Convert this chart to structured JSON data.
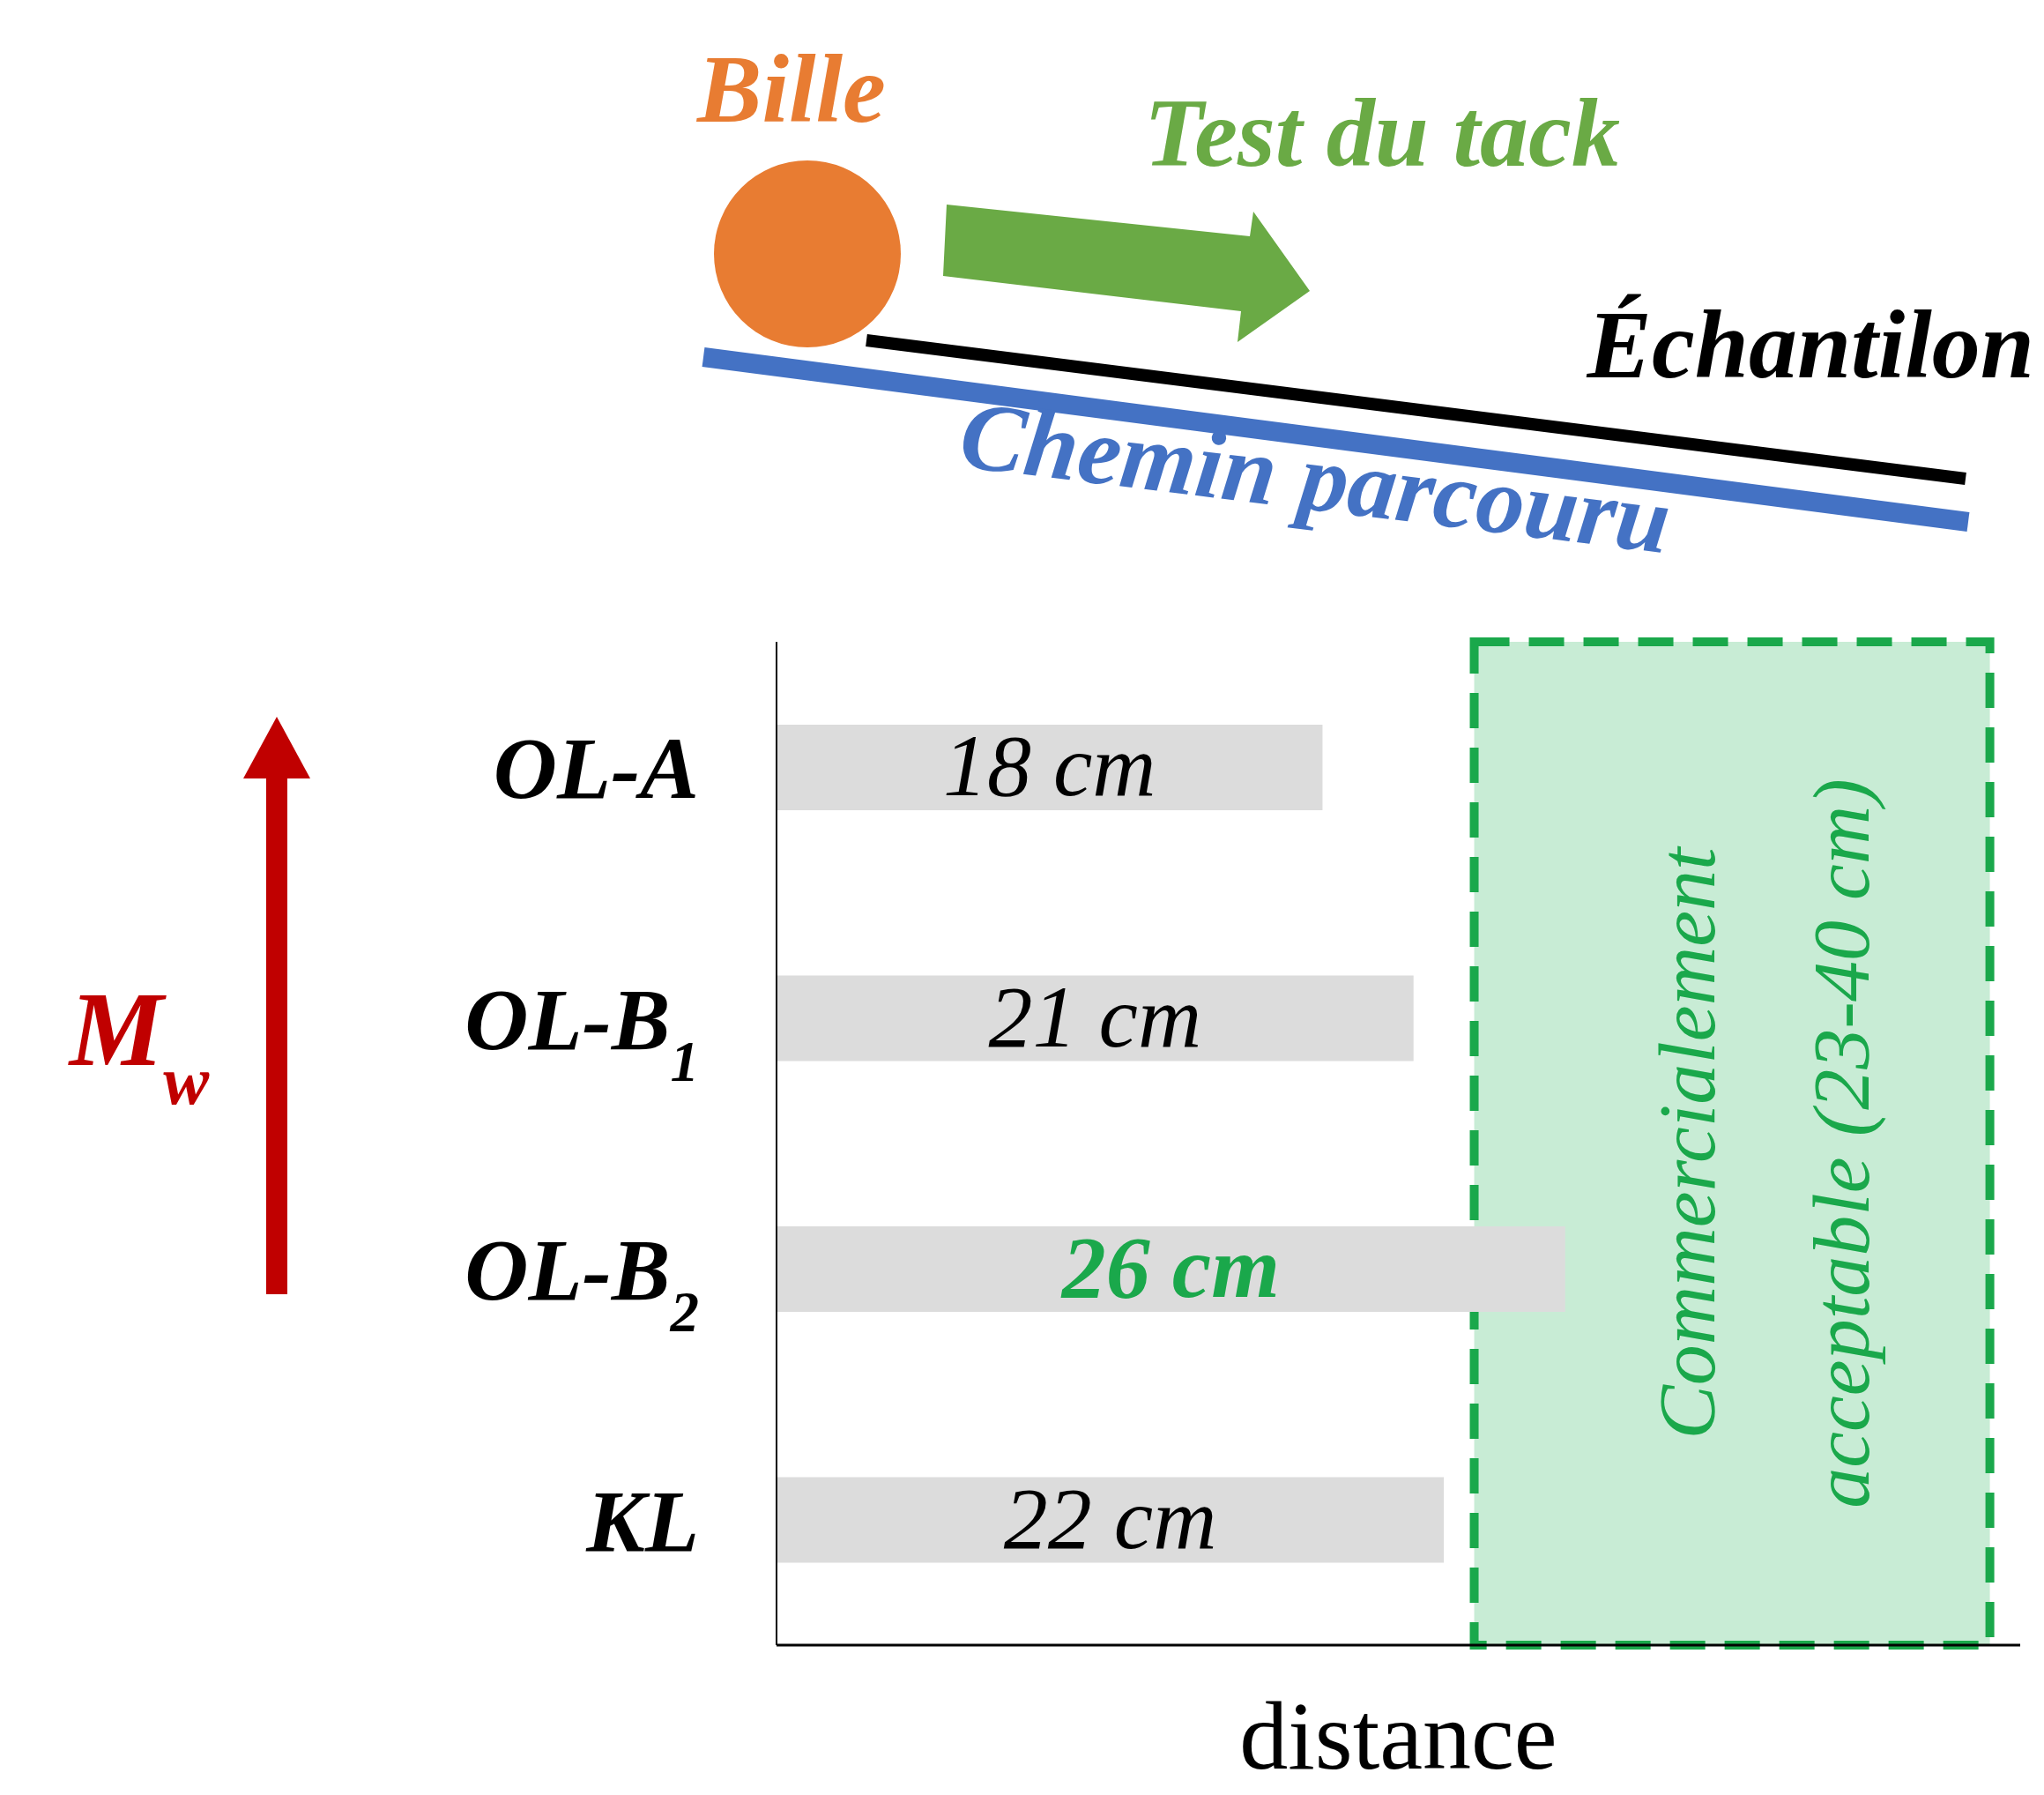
{
  "chart_data": {
    "type": "bar",
    "orientation": "horizontal",
    "categories": [
      "OL-A",
      "OL-B$_{1}$",
      "OL-B$_{2}$",
      "KL"
    ],
    "values": [
      18,
      21,
      26,
      22
    ],
    "value_labels": [
      "18 cm",
      "21 cm",
      "26 cm",
      "22 cm"
    ],
    "color": "#dcdcdc",
    "xlim": [
      0,
      41
    ],
    "xlabel": "distance",
    "ylabel": "M$_{w}$",
    "bands": [
      {
        "axis": "x",
        "from": 23,
        "to": 40,
        "label": "Commercialement acceptable (23-40 cm)",
        "color": "#c8ecd5"
      }
    ],
    "annotations": [
      "Bille",
      "Test du tack",
      "Échantilon",
      "Chemin parcouru"
    ]
  }
}
